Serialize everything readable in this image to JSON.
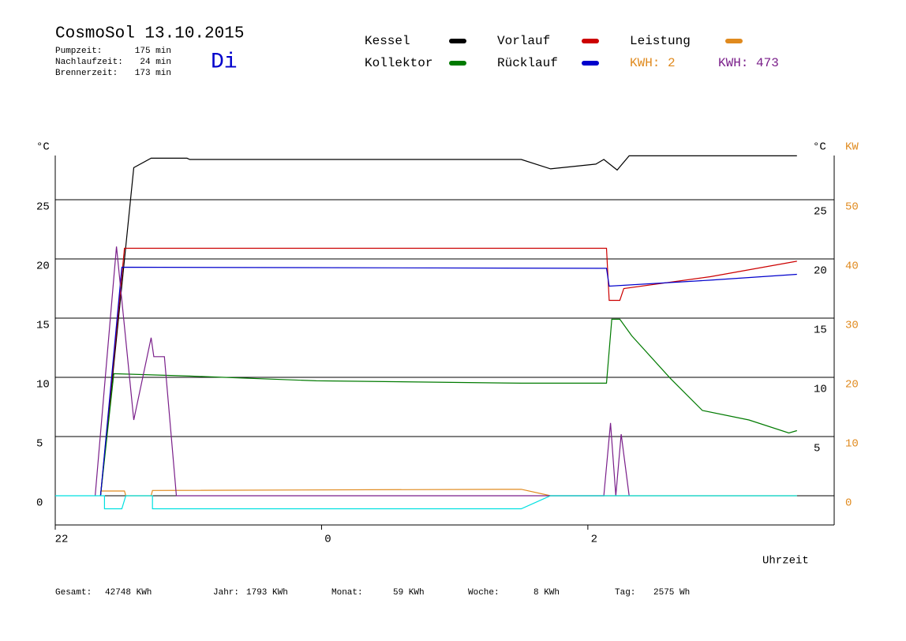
{
  "chart_data": {
    "type": "line",
    "title": "CosmoSol 13.10.2015",
    "day": "Di",
    "stats": [
      {
        "label": "Pumpzeit:",
        "value": "175 min"
      },
      {
        "label": "Nachlaufzeit:",
        "value": "24 min"
      },
      {
        "label": "Brennerzeit:",
        "value": "173 min"
      }
    ],
    "footer": [
      {
        "label": "Gesamt:",
        "value": "42748 KWh"
      },
      {
        "label": "Jahr:",
        "value": "1793 KWh"
      },
      {
        "label": "Monat:",
        "value": "59 KWh"
      },
      {
        "label": "Woche:",
        "value": "8 KWh"
      },
      {
        "label": "Tag:",
        "value": "2575 Wh"
      }
    ],
    "y_unit_left": "°C",
    "y_unit_right": "°C",
    "y2_unit": "KW",
    "x_label": "Uhrzeit",
    "kwh_note": {
      "text": "KWH: 2",
      "color": "#e08a1e"
    },
    "xlim": [
      22,
      27.85
    ],
    "xticks": [
      22,
      {
        "value": 24,
        "label": "0"
      },
      {
        "value": 26,
        "label": "2"
      }
    ],
    "ylim": [
      -2.47,
      28.73
    ],
    "yticks": [
      0,
      5,
      10,
      15,
      20,
      25
    ],
    "yticks_right": [
      5,
      10,
      15,
      20,
      25
    ],
    "y2lim": [
      -4.93,
      57.47
    ],
    "y2ticks": [
      0,
      10,
      20,
      30,
      40,
      50
    ],
    "grid": true,
    "series": [
      {
        "name": "Kessel",
        "color": "#000000",
        "x": [
          22.34,
          22.59,
          22.72,
          22.99,
          23.01,
          25.5,
          25.72,
          26.06,
          26.12,
          26.22,
          26.31,
          27.57
        ],
        "values": [
          0,
          27.7,
          28.5,
          28.5,
          28.4,
          28.4,
          27.6,
          28,
          28.4,
          27.5,
          28.7,
          28.7
        ]
      },
      {
        "name": "Vorlauf",
        "color": "#cc0000",
        "x": [
          22.34,
          22.52,
          26.14,
          26.16,
          26.24,
          26.27,
          26.92,
          27.57
        ],
        "values": [
          0,
          20.9,
          20.9,
          16.5,
          16.5,
          17.5,
          18.5,
          19.8
        ]
      },
      {
        "name": "Leistung",
        "color": "#e08a1e",
        "axis": "y2",
        "x": [
          22.34,
          22.52,
          22.53,
          22.72,
          22.73,
          25.5,
          25.72,
          27.57
        ],
        "values": [
          0.8,
          0.8,
          0,
          0,
          0.9,
          1.1,
          0,
          0
        ]
      },
      {
        "name": "Kollektor",
        "color": "#007a00",
        "x": [
          22.34,
          22.44,
          23.01,
          23.96,
          25.5,
          26.14,
          26.18,
          26.24,
          26.33,
          26.62,
          26.86,
          27.21,
          27.51,
          27.57
        ],
        "values": [
          0,
          10.3,
          10.1,
          9.7,
          9.5,
          9.5,
          14.9,
          14.9,
          13.5,
          9.9,
          7.2,
          6.4,
          5.3,
          5.5
        ]
      },
      {
        "name": "Rücklauf",
        "color": "#0000cc",
        "x": [
          22.34,
          22.5,
          26.14,
          26.16,
          26.92,
          27.57
        ],
        "values": [
          0,
          19.3,
          19.2,
          17.7,
          18.2,
          18.7
        ]
      },
      {
        "name": "KWH: 473",
        "color": "#7a1f8a",
        "axis": "y2",
        "x": [
          22.3,
          22.46,
          22.59,
          22.72,
          22.74,
          22.82,
          22.91,
          26.12,
          26.17,
          26.21,
          26.25,
          26.31
        ],
        "values": [
          0,
          42.1,
          12.8,
          26.7,
          23.5,
          23.5,
          0,
          0,
          12.3,
          0,
          10.4,
          0
        ]
      },
      {
        "color": "#00e0e0",
        "x": [
          22,
          22.37,
          22.37,
          22.5,
          22.53,
          22.73,
          22.73,
          25.5,
          25.72,
          27.57
        ],
        "values": [
          0,
          0,
          -1.1,
          -1.1,
          0,
          0,
          -1.1,
          -1.1,
          0,
          0
        ]
      }
    ]
  }
}
